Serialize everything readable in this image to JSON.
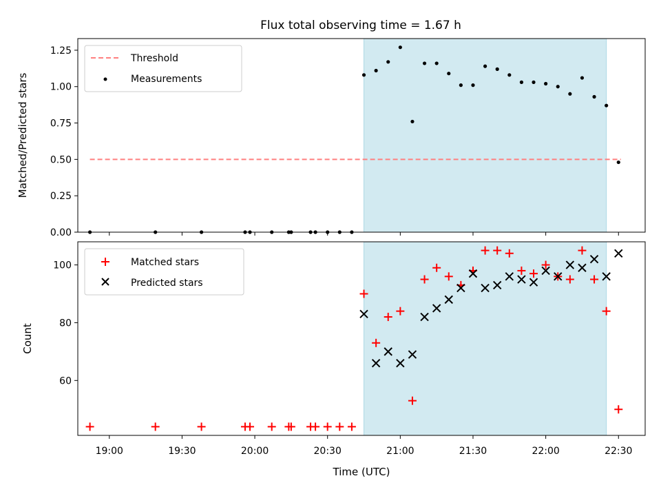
{
  "chart_data": [
    {
      "type": "scatter",
      "title": "Flux total observing time = 1.67 h",
      "xlabel": "",
      "ylabel": "Matched/Predicted stars",
      "ylim": [
        0,
        1.33
      ],
      "xlim": [
        "18:47",
        "22:41"
      ],
      "yticks": [
        "0.00",
        "0.25",
        "0.50",
        "0.75",
        "1.00",
        "1.25"
      ],
      "ytick_values": [
        0,
        0.25,
        0.5,
        0.75,
        1.0,
        1.25
      ],
      "legend": {
        "placement": "upper-left",
        "entries": [
          "Threshold",
          "Measurements"
        ]
      },
      "shaded_span": {
        "from": "20:45",
        "to": "22:25",
        "color": "#add8e6"
      },
      "threshold": {
        "name": "Threshold",
        "value": 0.5,
        "x_from": "18:52",
        "x_to": "22:31",
        "color": "#ff7f7f",
        "style": "dashed"
      },
      "series": [
        {
          "name": "Measurements",
          "marker": "dot",
          "color": "#000000",
          "x": [
            "18:52",
            "19:19",
            "19:38",
            "19:56",
            "19:58",
            "20:07",
            "20:14",
            "20:15",
            "20:23",
            "20:25",
            "20:30",
            "20:35",
            "20:40",
            "20:45",
            "20:50",
            "20:55",
            "21:00",
            "21:05",
            "21:10",
            "21:15",
            "21:20",
            "21:25",
            "21:30",
            "21:35",
            "21:40",
            "21:45",
            "21:50",
            "21:55",
            "22:00",
            "22:05",
            "22:10",
            "22:15",
            "22:20",
            "22:25",
            "22:30"
          ],
          "y": [
            0,
            0,
            0,
            0,
            0,
            0,
            0,
            0,
            0,
            0,
            0,
            0,
            0,
            1.08,
            1.11,
            1.17,
            1.27,
            0.76,
            1.16,
            1.16,
            1.09,
            1.01,
            1.01,
            1.14,
            1.12,
            1.08,
            1.03,
            1.03,
            1.02,
            1.0,
            0.95,
            1.06,
            0.93,
            0.87,
            0.48
          ]
        }
      ]
    },
    {
      "type": "scatter",
      "title": "",
      "xlabel": "Time (UTC)",
      "ylabel": "Count",
      "ylim": [
        41,
        108
      ],
      "yticks": [
        "60",
        "80",
        "100"
      ],
      "ytick_values": [
        60,
        80,
        100
      ],
      "xticks": [
        "19:00",
        "19:30",
        "20:00",
        "20:30",
        "21:00",
        "21:30",
        "22:00",
        "22:30"
      ],
      "xtick_values": [
        "19:00",
        "19:30",
        "20:00",
        "20:30",
        "21:00",
        "21:30",
        "22:00",
        "22:30"
      ],
      "legend": {
        "placement": "upper-left",
        "entries": [
          "Matched stars",
          "Predicted stars"
        ]
      },
      "shaded_span": {
        "from": "20:45",
        "to": "22:25",
        "color": "#add8e6"
      },
      "series": [
        {
          "name": "Matched stars",
          "marker": "plus",
          "color": "#ff0000",
          "x": [
            "18:52",
            "19:19",
            "19:38",
            "19:56",
            "19:58",
            "20:07",
            "20:14",
            "20:15",
            "20:23",
            "20:25",
            "20:30",
            "20:35",
            "20:40",
            "20:45",
            "20:50",
            "20:55",
            "21:00",
            "21:05",
            "21:10",
            "21:15",
            "21:20",
            "21:25",
            "21:30",
            "21:35",
            "21:40",
            "21:45",
            "21:50",
            "21:55",
            "22:00",
            "22:05",
            "22:10",
            "22:15",
            "22:20",
            "22:25",
            "22:30"
          ],
          "y": [
            44,
            44,
            44,
            44,
            44,
            44,
            44,
            44,
            44,
            44,
            44,
            44,
            44,
            90,
            73,
            82,
            84,
            53,
            95,
            99,
            96,
            93,
            98,
            105,
            105,
            104,
            98,
            97,
            100,
            96,
            95,
            105,
            95,
            84,
            50
          ]
        },
        {
          "name": "Predicted stars",
          "marker": "x",
          "color": "#000000",
          "x": [
            "20:45",
            "20:50",
            "20:55",
            "21:00",
            "21:05",
            "21:10",
            "21:15",
            "21:20",
            "21:25",
            "21:30",
            "21:35",
            "21:40",
            "21:45",
            "21:50",
            "21:55",
            "22:00",
            "22:05",
            "22:10",
            "22:15",
            "22:20",
            "22:25",
            "22:30"
          ],
          "y": [
            83,
            66,
            70,
            66,
            69,
            82,
            85,
            88,
            92,
            97,
            92,
            93,
            96,
            95,
            94,
            98,
            96,
            100,
            99,
            102,
            96,
            104
          ]
        }
      ]
    }
  ]
}
